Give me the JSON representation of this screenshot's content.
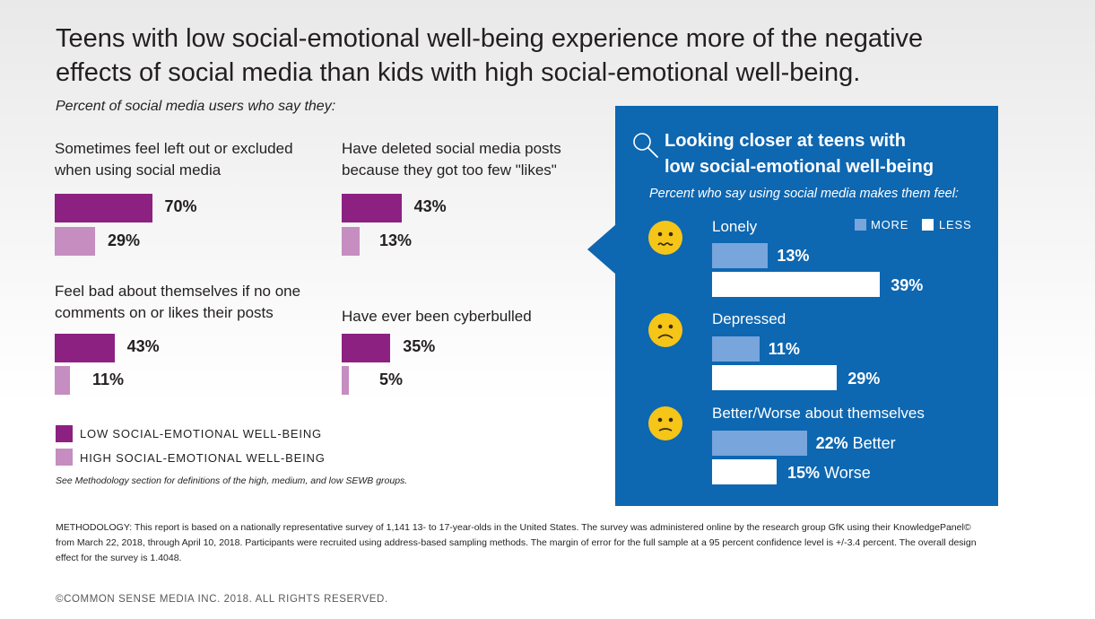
{
  "title": "Teens with low social-emotional well-being experience more of the negative effects of social media than kids with high social-emotional well-being.",
  "subtitle": "Percent of social media users who say they:",
  "colors": {
    "low": "#8c2181",
    "high": "#c58dc0",
    "panel": "#0e67b1",
    "more": "#78a5dc",
    "less": "#ffffff",
    "face": "#f5c518"
  },
  "legend": {
    "low": "LOW SOCIAL-EMOTIONAL WELL-BEING",
    "high": "HIGH SOCIAL-EMOTIONAL WELL-BEING"
  },
  "note": "See Methodology section for definitions of the high, medium, and low SEWB groups.",
  "chart_data": [
    {
      "type": "bar",
      "title": "Percent of social media users who say they:",
      "series": [
        {
          "name": "LOW SOCIAL-EMOTIONAL WELL-BEING",
          "values": [
            70,
            43,
            43,
            35
          ]
        },
        {
          "name": "HIGH SOCIAL-EMOTIONAL WELL-BEING",
          "values": [
            29,
            13,
            11,
            5
          ]
        }
      ],
      "categories": [
        "Sometimes feel left out or excluded when using social media",
        "Have deleted social media posts because they got too few \"likes\"",
        "Feel bad about themselves if no one comments on or likes their posts",
        "Have ever been cyberbulled"
      ],
      "value_labels": [
        {
          "low": "70%",
          "high": "29%"
        },
        {
          "low": "43%",
          "high": "13%"
        },
        {
          "low": "43%",
          "high": "11%"
        },
        {
          "low": "35%",
          "high": "5%"
        }
      ]
    },
    {
      "type": "bar",
      "title": "Looking closer at teens with low social-emotional well-being",
      "subtitle": "Percent who say using social media makes them feel:",
      "legend": [
        "MORE",
        "LESS"
      ],
      "categories": [
        "Lonely",
        "Depressed",
        "Better/Worse about themselves"
      ],
      "series": [
        {
          "name": "MORE",
          "values": [
            13,
            11,
            22
          ]
        },
        {
          "name": "LESS",
          "values": [
            39,
            29,
            15
          ]
        }
      ],
      "value_labels": [
        {
          "more": "13%",
          "less": "39%"
        },
        {
          "more": "11%",
          "less": "29%"
        },
        {
          "more": "22%",
          "less": "15%",
          "more_word": "Better",
          "less_word": "Worse"
        }
      ]
    }
  ],
  "panel": {
    "title_line1": "Looking closer at teens with",
    "title_line2": "low social-emotional well-being",
    "subtitle": "Percent who say using social media makes them feel:",
    "legend_more": "MORE",
    "legend_less": "LESS",
    "icon": "search-icon"
  },
  "methodology": {
    "label": "METHODOLOGY:",
    "text": " This report is based on a nationally representative survey of 1,141 13- to 17-year-olds in the United States. The survey was administered online by the research group GfK using their KnowledgePanel© from March 22, 2018, through April 10, 2018. Participants were recruited using address-based sampling methods. The margin of error for the full sample at a 95 percent confidence level is +/-3.4 percent. The overall design effect for the survey is 1.4048."
  },
  "copyright": "©COMMON SENSE MEDIA INC. 2018. ALL RIGHTS RESERVED."
}
